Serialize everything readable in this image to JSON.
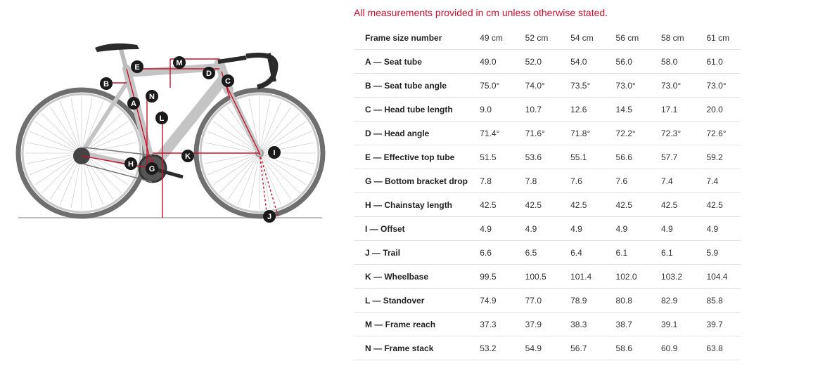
{
  "note": "All measurements provided in cm unless otherwise stated.",
  "table": {
    "header_label": "Frame size number",
    "sizes": [
      "49 cm",
      "52 cm",
      "54 cm",
      "56 cm",
      "58 cm",
      "61 cm"
    ],
    "rows": [
      {
        "label": "A — Seat tube",
        "values": [
          "49.0",
          "52.0",
          "54.0",
          "56.0",
          "58.0",
          "61.0"
        ]
      },
      {
        "label": "B — Seat tube angle",
        "values": [
          "75.0°",
          "74.0°",
          "73.5°",
          "73.0°",
          "73.0°",
          "73.0°"
        ]
      },
      {
        "label": "C — Head tube length",
        "values": [
          "9.0",
          "10.7",
          "12.6",
          "14.5",
          "17.1",
          "20.0"
        ]
      },
      {
        "label": "D — Head angle",
        "values": [
          "71.4°",
          "71.6°",
          "71.8°",
          "72.2°",
          "72.3°",
          "72.6°"
        ]
      },
      {
        "label": "E — Effective top tube",
        "values": [
          "51.5",
          "53.6",
          "55.1",
          "56.6",
          "57.7",
          "59.2"
        ]
      },
      {
        "label": "G — Bottom bracket drop",
        "values": [
          "7.8",
          "7.8",
          "7.6",
          "7.6",
          "7.4",
          "7.4"
        ]
      },
      {
        "label": "H — Chainstay length",
        "values": [
          "42.5",
          "42.5",
          "42.5",
          "42.5",
          "42.5",
          "42.5"
        ]
      },
      {
        "label": "I — Offset",
        "values": [
          "4.9",
          "4.9",
          "4.9",
          "4.9",
          "4.9",
          "4.9"
        ]
      },
      {
        "label": "J — Trail",
        "values": [
          "6.6",
          "6.5",
          "6.4",
          "6.1",
          "6.1",
          "5.9"
        ]
      },
      {
        "label": "K — Wheelbase",
        "values": [
          "99.5",
          "100.5",
          "101.4",
          "102.0",
          "103.2",
          "104.4"
        ]
      },
      {
        "label": "L — Standover",
        "values": [
          "74.9",
          "77.0",
          "78.9",
          "80.8",
          "82.9",
          "85.8"
        ]
      },
      {
        "label": "M — Frame reach",
        "values": [
          "37.3",
          "37.9",
          "38.3",
          "38.7",
          "39.1",
          "39.7"
        ]
      },
      {
        "label": "N — Frame stack",
        "values": [
          "53.2",
          "54.9",
          "56.7",
          "58.6",
          "60.9",
          "63.8"
        ]
      }
    ]
  },
  "diagram": {
    "markers": [
      "A",
      "B",
      "C",
      "D",
      "E",
      "G",
      "H",
      "I",
      "J",
      "K",
      "L",
      "M",
      "N"
    ],
    "colors": {
      "measure_line": "#c8102e",
      "frame": "#c4c4c4",
      "marker": "#1a1a1a"
    }
  }
}
